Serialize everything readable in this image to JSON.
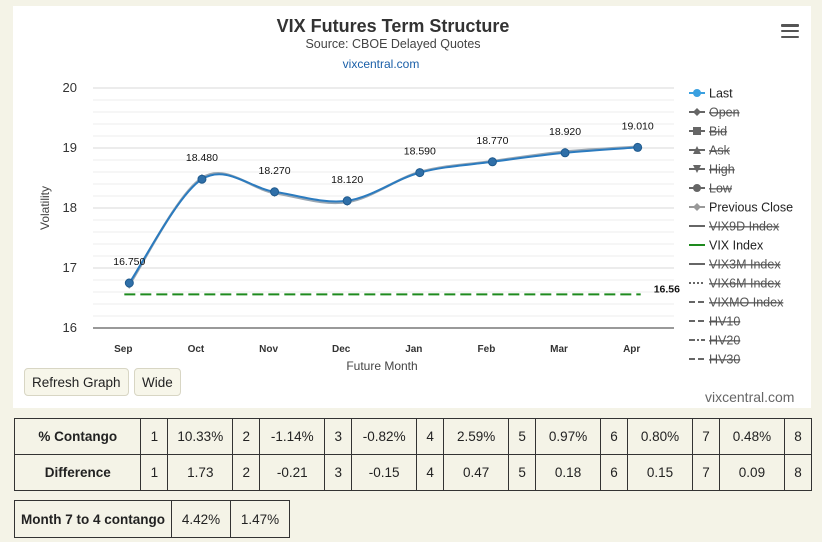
{
  "chart_data": {
    "type": "line",
    "title": "VIX Futures Term Structure",
    "subtitle": "Source: CBOE Delayed Quotes",
    "link": "vixcentral.com",
    "xlabel": "Future Month",
    "ylabel": "Volatility",
    "categories": [
      "Sep",
      "Oct",
      "Nov",
      "Dec",
      "Jan",
      "Feb",
      "Mar",
      "Apr"
    ],
    "ylim": [
      16,
      20
    ],
    "yticks": [
      "20",
      "19",
      "18",
      "17",
      "16"
    ],
    "grid": true,
    "legend_position": "right",
    "series": [
      {
        "name": "Last",
        "values": [
          16.75,
          18.48,
          18.27,
          18.12,
          18.59,
          18.77,
          18.92,
          19.01
        ],
        "labels": [
          "16.750",
          "18.480",
          "18.270",
          "18.120",
          "18.590",
          "18.770",
          "18.920",
          "19.010"
        ],
        "color": "#2b7bbf"
      },
      {
        "name": "Previous Close",
        "values": [
          16.72,
          18.5,
          18.25,
          18.1,
          18.6,
          18.78,
          18.94,
          19.02
        ],
        "color": "#9aa7b3"
      },
      {
        "name": "VIX Index",
        "values": [
          16.56,
          16.56,
          16.56,
          16.56,
          16.56,
          16.56,
          16.56,
          16.56
        ],
        "label": "16.56",
        "color": "#1e8a1e"
      }
    ],
    "legend": [
      {
        "name": "Last",
        "marker": "circle",
        "line": "solid",
        "color": "#3aa0e0",
        "active": true
      },
      {
        "name": "Open",
        "marker": "diamond",
        "line": "solid",
        "color": "#555555",
        "active": false
      },
      {
        "name": "Bid",
        "marker": "square",
        "line": "solid",
        "color": "#555555",
        "active": false
      },
      {
        "name": "Ask",
        "marker": "triangle",
        "line": "solid",
        "color": "#555555",
        "active": false
      },
      {
        "name": "High",
        "marker": "triangle-down",
        "line": "solid",
        "color": "#555555",
        "active": false
      },
      {
        "name": "Low",
        "marker": "circle",
        "line": "solid",
        "color": "#555555",
        "active": false
      },
      {
        "name": "Previous Close",
        "marker": "diamond",
        "line": "solid",
        "color": "#999999",
        "active": true
      },
      {
        "name": "VIX9D Index",
        "marker": "none",
        "line": "solid",
        "color": "#555555",
        "active": false
      },
      {
        "name": "VIX Index",
        "marker": "none",
        "line": "solid",
        "color": "#1e8a1e",
        "active": true
      },
      {
        "name": "VIX3M Index",
        "marker": "none",
        "line": "solid",
        "color": "#555555",
        "active": false
      },
      {
        "name": "VIX6M Index",
        "marker": "none",
        "line": "dotted",
        "color": "#555555",
        "active": false
      },
      {
        "name": "VIXMO Index",
        "marker": "none",
        "line": "dashed",
        "color": "#555555",
        "active": false
      },
      {
        "name": "HV10",
        "marker": "none",
        "line": "dashed",
        "color": "#555555",
        "active": false
      },
      {
        "name": "HV20",
        "marker": "none",
        "line": "dashdot",
        "color": "#555555",
        "active": false
      },
      {
        "name": "HV30",
        "marker": "none",
        "line": "dashed",
        "color": "#555555",
        "active": false
      }
    ]
  },
  "toolbar": {
    "refresh_label": "Refresh Graph",
    "wide_label": "Wide"
  },
  "credit": "vixcentral.com",
  "contango_table": {
    "rows": [
      {
        "label": "% Contango",
        "cells": [
          [
            "1",
            "10.33%"
          ],
          [
            "2",
            "-1.14%"
          ],
          [
            "3",
            "-0.82%"
          ],
          [
            "4",
            "2.59%"
          ],
          [
            "5",
            "0.97%"
          ],
          [
            "6",
            "0.80%"
          ],
          [
            "7",
            "0.48%"
          ],
          [
            "8",
            ""
          ]
        ]
      },
      {
        "label": "Difference",
        "cells": [
          [
            "1",
            "1.73"
          ],
          [
            "2",
            "-0.21"
          ],
          [
            "3",
            "-0.15"
          ],
          [
            "4",
            "0.47"
          ],
          [
            "5",
            "0.18"
          ],
          [
            "6",
            "0.15"
          ],
          [
            "7",
            "0.09"
          ],
          [
            "8",
            ""
          ]
        ]
      }
    ]
  },
  "month74": {
    "label": "Month 7 to 4 contango",
    "value1": "4.42%",
    "value2": "1.47%"
  }
}
